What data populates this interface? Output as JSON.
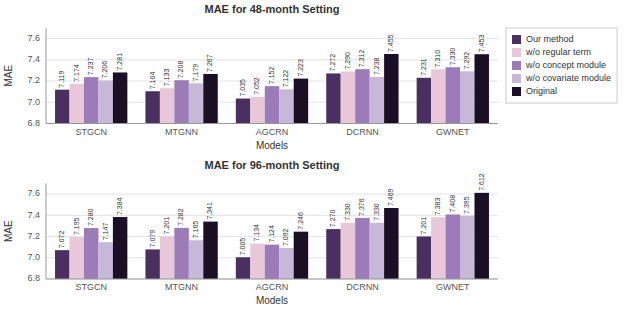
{
  "chart_data": [
    {
      "type": "bar",
      "title": "MAE for 48-month Setting",
      "x_label": "Models",
      "y_label": "MAE",
      "categories": [
        "STGCN",
        "MTGNN",
        "AGCRN",
        "DCRNN",
        "GWNET"
      ],
      "series": [
        {
          "name": "Our method",
          "color": "#4a3060",
          "values": [
            7.119,
            7.104,
            7.035,
            7.272,
            7.231
          ],
          "value_labels": [
            "7.119",
            "7.104",
            "7.035",
            "7.272",
            "7.231"
          ]
        },
        {
          "name": "w/o regular term",
          "color": "#e8c8d8",
          "values": [
            7.174,
            7.133,
            7.052,
            7.29,
            7.31
          ],
          "value_labels": [
            "7.174",
            "7.133",
            "7.052",
            "7.290",
            "7.310"
          ]
        },
        {
          "name": "w/o concept module",
          "color": "#9b7bb8",
          "values": [
            7.237,
            7.208,
            7.152,
            7.312,
            7.33
          ],
          "value_labels": [
            "7.237",
            "7.208",
            "7.152",
            "7.312",
            "7.330"
          ]
        },
        {
          "name": "w/o covariate module",
          "color": "#c8b8d8",
          "values": [
            7.206,
            7.179,
            7.122,
            7.238,
            7.292
          ],
          "value_labels": [
            "7.206",
            "7.179",
            "7.122",
            "7.238",
            "7.292"
          ]
        },
        {
          "name": "Original",
          "color": "#1a0f25",
          "values": [
            7.281,
            7.267,
            7.223,
            7.455,
            7.453
          ],
          "value_labels": [
            "7.281",
            "7.267",
            "7.223",
            "7.455",
            "7.453"
          ]
        }
      ],
      "ylim": [
        6.8,
        7.7
      ],
      "yticks": [
        6.8,
        {
          "value": 7.0,
          "label": "7.0"
        },
        7.2,
        7.4,
        7.6
      ],
      "grid": true,
      "data_labels": true,
      "legend": "right"
    },
    {
      "type": "bar",
      "title": "MAE for 96-month Setting",
      "x_label": "Models",
      "y_label": "MAE",
      "categories": [
        "STGCN",
        "MTGNN",
        "AGCRN",
        "DCRNN",
        "GWNET"
      ],
      "series": [
        {
          "color": "#4a3060",
          "values": [
            7.072,
            7.079,
            7.005,
            7.27,
            7.201
          ],
          "value_labels": [
            "7.072",
            "7.079",
            "7.005",
            "7.270",
            "7.201"
          ]
        },
        {
          "color": "#e8c8d8",
          "values": [
            7.195,
            7.201,
            7.134,
            7.33,
            7.383
          ],
          "value_labels": [
            "7.195",
            "7.201",
            "7.134",
            "7.330",
            "7.383"
          ]
        },
        {
          "color": "#9b7bb8",
          "values": [
            7.28,
            7.282,
            7.124,
            7.376,
            7.408
          ],
          "value_labels": [
            "7.280",
            "7.282",
            "7.124",
            "7.376",
            "7.408"
          ]
        },
        {
          "color": "#c8b8d8",
          "values": [
            7.147,
            7.165,
            7.092,
            7.33,
            7.395
          ],
          "value_labels": [
            "7.147",
            "7.165",
            "7.092",
            "7.330",
            "7.395"
          ]
        },
        {
          "color": "#1a0f25",
          "values": [
            7.384,
            7.341,
            7.246,
            7.469,
            7.612
          ],
          "value_labels": [
            "7.384",
            "7.341",
            "7.246",
            "7.469",
            "7.612"
          ]
        }
      ],
      "ylim": [
        6.8,
        7.7
      ],
      "yticks": [
        6.8,
        {
          "value": 7.0,
          "label": "7.0"
        },
        7.2,
        7.4,
        7.6
      ],
      "grid": true,
      "data_labels": true
    }
  ]
}
